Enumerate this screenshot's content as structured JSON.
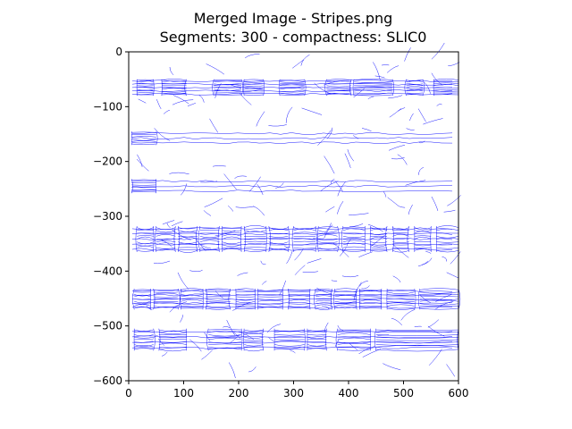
{
  "figure": {
    "title_line1": "Merged Image - Stripes.png",
    "title_line2": "Segments: 300 - compactness: SLIC0"
  },
  "chart_data": {
    "type": "scatter",
    "description_free": true,
    "title": "Merged Image - Stripes.png\nSegments: 300 - compactness: SLIC0",
    "xlim": [
      0,
      600
    ],
    "ylim": [
      -600,
      0
    ],
    "xticks": [
      0,
      100,
      200,
      300,
      400,
      500,
      600
    ],
    "yticks": [
      0,
      -100,
      -200,
      -300,
      -400,
      -500,
      -600
    ],
    "xtick_labels": [
      "0",
      "100",
      "200",
      "300",
      "400",
      "500",
      "600"
    ],
    "ytick_labels": [
      "0",
      "−100",
      "−200",
      "−300",
      "−400",
      "−500",
      "−600"
    ],
    "line_color": "#0000ff",
    "grid": false,
    "stripes": [
      {
        "y_center": -65,
        "y_span": [
          -80,
          -50
        ],
        "density": "dense-segments"
      },
      {
        "y_center": -160,
        "y_span": [
          -170,
          -145
        ],
        "density": "sparse"
      },
      {
        "y_center": -245,
        "y_span": [
          -258,
          -232
        ],
        "density": "sparse"
      },
      {
        "y_center": -340,
        "y_span": [
          -365,
          -318
        ],
        "density": "dense"
      },
      {
        "y_center": -450,
        "y_span": [
          -470,
          -432
        ],
        "density": "dense"
      },
      {
        "y_center": -525,
        "y_span": [
          -545,
          -505
        ],
        "density": "medium"
      }
    ],
    "cells_by_stripe": [
      [
        [
          15,
          45
        ],
        [
          60,
          105
        ],
        [
          155,
          205
        ],
        [
          210,
          245
        ],
        [
          275,
          320
        ],
        [
          360,
          405
        ],
        [
          410,
          480
        ],
        [
          505,
          535
        ],
        [
          555,
          600
        ]
      ],
      [
        [
          5,
          50
        ]
      ],
      [
        [
          5,
          50
        ]
      ],
      [
        [
          15,
          45
        ],
        [
          50,
          85
        ],
        [
          90,
          125
        ],
        [
          130,
          165
        ],
        [
          170,
          205
        ],
        [
          210,
          250
        ],
        [
          255,
          290
        ],
        [
          300,
          340
        ],
        [
          345,
          380
        ],
        [
          390,
          430
        ],
        [
          440,
          470
        ],
        [
          480,
          510
        ],
        [
          520,
          550
        ],
        [
          560,
          600
        ]
      ],
      [
        [
          10,
          40
        ],
        [
          45,
          90
        ],
        [
          95,
          135
        ],
        [
          140,
          185
        ],
        [
          195,
          230
        ],
        [
          235,
          280
        ],
        [
          290,
          330
        ],
        [
          340,
          370
        ],
        [
          375,
          415
        ],
        [
          420,
          460
        ],
        [
          470,
          520
        ],
        [
          530,
          600
        ]
      ],
      [
        [
          10,
          45
        ],
        [
          55,
          105
        ],
        [
          145,
          205
        ],
        [
          210,
          245
        ],
        [
          265,
          320
        ],
        [
          325,
          360
        ],
        [
          380,
          440
        ],
        [
          450,
          600
        ]
      ]
    ]
  }
}
